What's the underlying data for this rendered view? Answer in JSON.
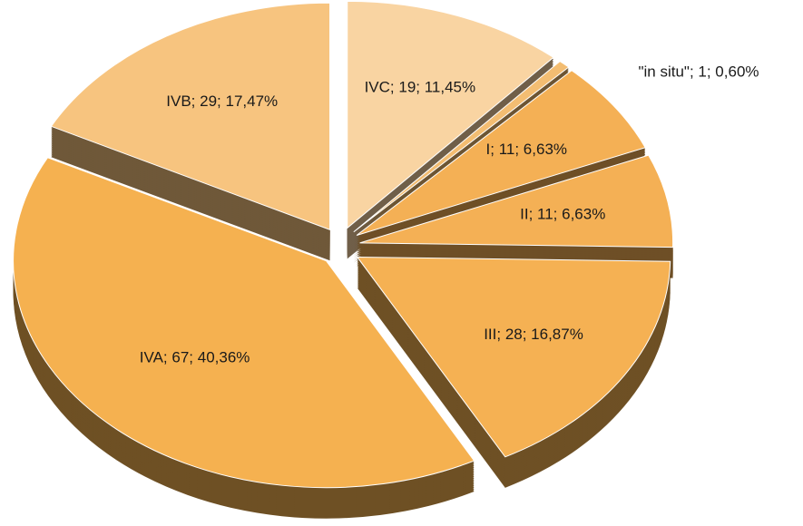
{
  "chart_data": {
    "type": "pie3d",
    "categories": [
      "IVC",
      "\"in situ\"",
      "I",
      "II",
      "III",
      "IVA",
      "IVB"
    ],
    "values": [
      19,
      1,
      11,
      11,
      28,
      67,
      29
    ],
    "value_labels": [
      "IVC; 19; 11,45%",
      "\"in situ\"; 1; 0,60%",
      "I; 11; 6,63%",
      "II; 11; 6,63%",
      "III; 28; 16,87%",
      "IVA; 67; 40,36%",
      "IVB; 29; 17,47%"
    ],
    "colors": [
      "#f9d4a2",
      "#f3bd72",
      "#f4b055",
      "#f4b055",
      "#f5b153",
      "#f5b150",
      "#f7c47f"
    ]
  }
}
